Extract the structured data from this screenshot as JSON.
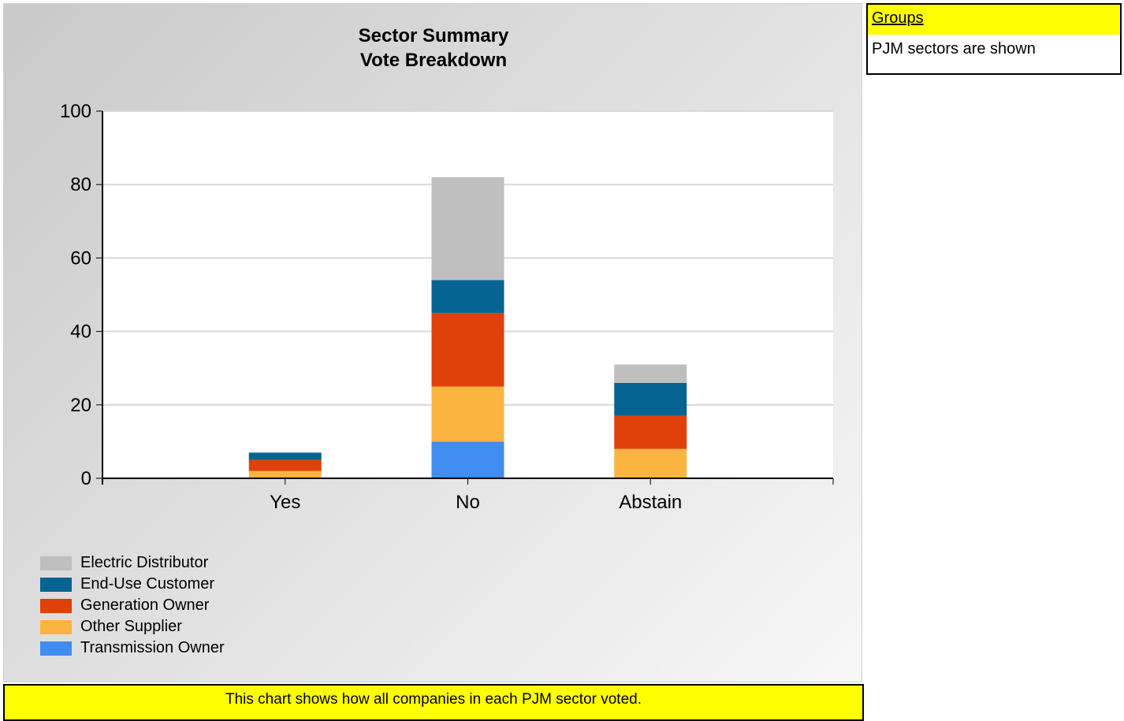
{
  "chart_data": {
    "type": "bar",
    "stacked": true,
    "title": "Sector Summary",
    "subtitle": "Vote Breakdown",
    "categories": [
      "Yes",
      "No",
      "Abstain"
    ],
    "ylim": [
      0,
      100
    ],
    "yticks": [
      0,
      20,
      40,
      60,
      80,
      100
    ],
    "grid": true,
    "legend_position": "bottom-left",
    "series": [
      {
        "name": "Transmission Owner",
        "color": "#418cf0",
        "values": [
          0,
          10,
          0
        ]
      },
      {
        "name": "Other Supplier",
        "color": "#fcb441",
        "values": [
          2,
          15,
          8
        ]
      },
      {
        "name": "Generation Owner",
        "color": "#e0400a",
        "values": [
          3,
          20,
          9
        ]
      },
      {
        "name": "End-Use Customer",
        "color": "#056492",
        "values": [
          2,
          9,
          9
        ]
      },
      {
        "name": "Electric Distributor",
        "color": "#bfbfbf",
        "values": [
          0,
          28,
          5
        ]
      }
    ]
  },
  "legend_order": [
    "Electric Distributor",
    "End-Use Customer",
    "Generation Owner",
    "Other Supplier",
    "Transmission Owner"
  ],
  "groups": {
    "header": "Groups",
    "text": "PJM sectors are shown"
  },
  "footer": {
    "note": "This chart shows how all companies in each PJM sector voted."
  }
}
